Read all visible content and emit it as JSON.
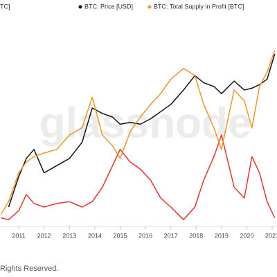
{
  "chart_data": {
    "type": "line",
    "watermark": "glassnode",
    "footer": "Rights Reserved.",
    "x": [
      2010.3,
      2010.6,
      2011,
      2011.3,
      2011.6,
      2012,
      2012.5,
      2013,
      2013.5,
      2013.9,
      2014.3,
      2014.7,
      2015,
      2015.4,
      2015.8,
      2016.2,
      2016.6,
      2017,
      2017.5,
      2017.95,
      2018.3,
      2018.7,
      2019,
      2019.5,
      2019.9,
      2020.2,
      2020.5,
      2020.8,
      2021.1
    ],
    "series": [
      {
        "name": "TC]",
        "color": "#e5322b",
        "values": [
          4,
          3,
          8,
          17,
          12,
          10,
          12,
          13,
          10,
          13,
          21,
          33,
          42,
          35,
          31,
          25,
          15,
          10,
          3,
          10,
          25,
          38,
          50,
          21,
          15,
          38,
          29,
          13,
          4
        ]
      },
      {
        "name": "BTC: Price [USD]",
        "color": "#111111",
        "values": [
          null,
          10,
          27,
          37,
          42,
          29,
          33,
          37,
          46,
          65,
          62,
          60,
          56,
          57,
          56,
          59,
          63,
          67,
          75,
          83,
          79,
          77,
          73,
          80,
          75,
          76,
          78,
          81,
          95
        ]
      },
      {
        "name": "BTC: Total Supply in Profit [BTC]",
        "color": "#f0932b",
        "values": [
          6,
          13,
          29,
          35,
          38,
          40,
          42,
          50,
          54,
          71,
          50,
          44,
          37,
          52,
          60,
          67,
          73,
          81,
          87,
          83,
          67,
          54,
          42,
          75,
          69,
          54,
          77,
          85,
          97
        ]
      }
    ],
    "xlim": [
      2010.26,
      2021.19
    ],
    "xticks": [
      2011,
      2012,
      2013,
      2014,
      2015,
      2016,
      2017,
      2018,
      2019,
      2020,
      2021
    ],
    "ylim": [
      0,
      100
    ]
  }
}
